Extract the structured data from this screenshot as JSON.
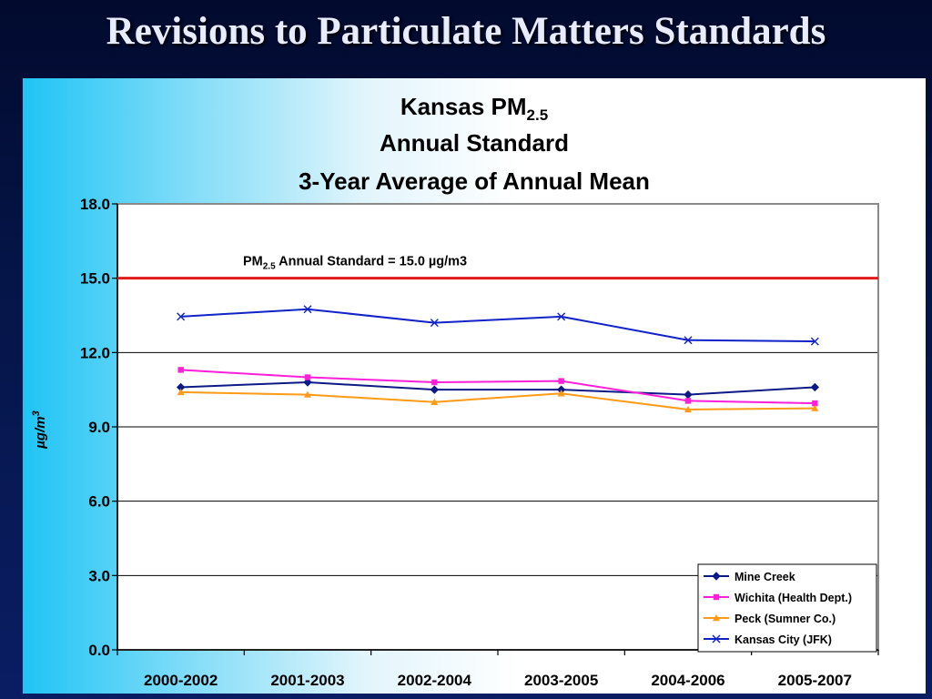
{
  "slide": {
    "title": "Revisions to Particulate Matters Standards"
  },
  "chart_data": {
    "type": "line",
    "title_lines": [
      {
        "main": "Kansas PM",
        "sub": "2.5"
      },
      {
        "main": "Annual Standard"
      },
      {
        "main": "3-Year Average of Annual Mean"
      }
    ],
    "xlabel": "",
    "ylabel": {
      "main": "µg/m",
      "sup": "3"
    },
    "ylim": [
      0,
      18
    ],
    "yticks": [
      0,
      3,
      6,
      9,
      12,
      15,
      18
    ],
    "ytick_labels": [
      "0.0",
      "3.0",
      "6.0",
      "9.0",
      "12.0",
      "15.0",
      "18.0"
    ],
    "categories": [
      "2000-2002",
      "2001-2003",
      "2002-2004",
      "2003-2005",
      "2004-2006",
      "2005-2007"
    ],
    "grid": "horizontal",
    "legend_position": "bottom-right",
    "series": [
      {
        "name": "Mine Creek",
        "color": "#0b1a86",
        "marker": "diamond",
        "values": [
          10.6,
          10.8,
          10.5,
          10.5,
          10.3,
          10.6
        ]
      },
      {
        "name": "Wichita (Health Dept.)",
        "color": "#ff1fd9",
        "marker": "square",
        "values": [
          11.3,
          11.0,
          10.8,
          10.85,
          10.05,
          9.95
        ]
      },
      {
        "name": "Peck (Sumner Co.)",
        "color": "#ff9a14",
        "marker": "triangle",
        "values": [
          10.4,
          10.3,
          10.0,
          10.35,
          9.7,
          9.75
        ]
      },
      {
        "name": "Kansas City (JFK)",
        "color": "#1022c8",
        "marker": "x",
        "values": [
          13.45,
          13.75,
          13.2,
          13.45,
          12.5,
          12.45
        ]
      }
    ],
    "reference_line": {
      "value": 15.0,
      "color": "#e11a1a",
      "label": {
        "prefix": "PM",
        "sub": "2.5",
        "suffix": " Annual Standard = 15.0 µg/m3"
      }
    }
  }
}
